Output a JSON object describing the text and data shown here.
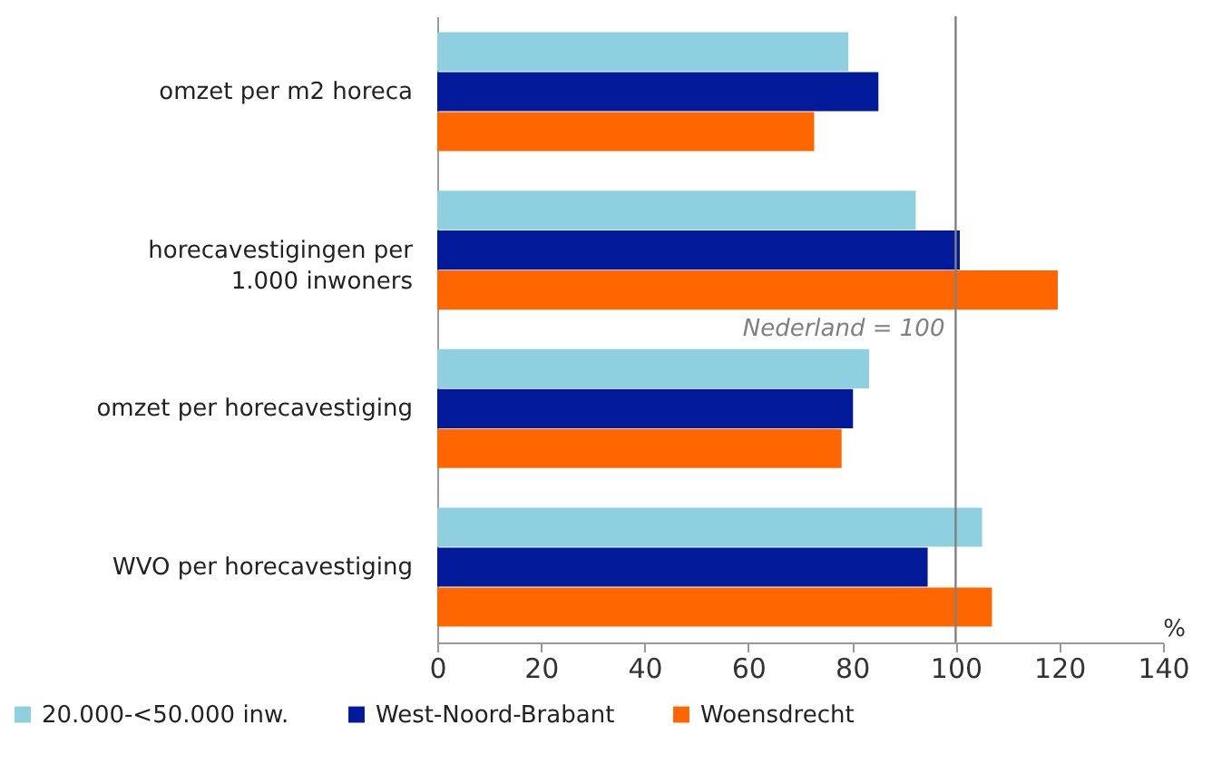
{
  "chart_data": {
    "type": "bar",
    "orientation": "horizontal",
    "xlabel": "%",
    "categories": [
      "omzet per m2 horeca",
      "horecavestigingen per 1.000 inwoners",
      "omzet per horecavestiging",
      "WVO per horecavestiging"
    ],
    "series": [
      {
        "name": "20.000-<50.000 inw.",
        "color": "#8ecfe0",
        "values": [
          79.3,
          92.3,
          83.3,
          105.1
        ]
      },
      {
        "name": "West-Noord-Brabant",
        "color": "#001a99",
        "values": [
          85.1,
          100.8,
          80.2,
          94.6
        ]
      },
      {
        "name": "Woensdrecht",
        "color": "#ff6600",
        "values": [
          72.7,
          119.7,
          78,
          107
        ]
      }
    ],
    "xlim": [
      0,
      140
    ],
    "xticks": [
      0,
      20,
      40,
      60,
      80,
      100,
      120,
      140
    ],
    "ref_lines": [
      {
        "axis": "x",
        "value": 100,
        "label": "Nederland = 100",
        "color": "#808080"
      }
    ],
    "grid": false,
    "legend": "bottom"
  }
}
